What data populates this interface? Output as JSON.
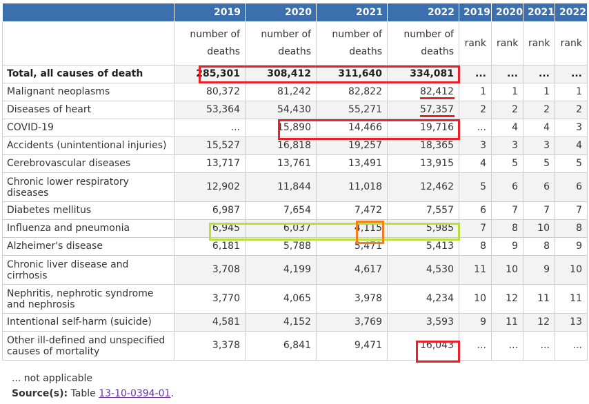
{
  "header": {
    "years": [
      "2019",
      "2020",
      "2021",
      "2022",
      "2019",
      "2020",
      "2021",
      "2022"
    ],
    "units": [
      "number of deaths",
      "number of deaths",
      "number of deaths",
      "number of deaths",
      "rank",
      "rank",
      "rank",
      "rank"
    ]
  },
  "rows": [
    {
      "label": "Total, all causes of death",
      "deaths": [
        "285,301",
        "308,412",
        "311,640",
        "334,081"
      ],
      "ranks": [
        "...",
        "...",
        "...",
        "..."
      ]
    },
    {
      "label": "Malignant neoplasms",
      "deaths": [
        "80,372",
        "81,242",
        "82,822",
        "82,412"
      ],
      "ranks": [
        "1",
        "1",
        "1",
        "1"
      ]
    },
    {
      "label": "Diseases of heart",
      "deaths": [
        "53,364",
        "54,430",
        "55,271",
        "57,357"
      ],
      "ranks": [
        "2",
        "2",
        "2",
        "2"
      ]
    },
    {
      "label": "COVID-19",
      "deaths": [
        "...",
        "15,890",
        "14,466",
        "19,716"
      ],
      "ranks": [
        "...",
        "4",
        "4",
        "3"
      ]
    },
    {
      "label": "Accidents (unintentional injuries)",
      "deaths": [
        "15,527",
        "16,818",
        "19,257",
        "18,365"
      ],
      "ranks": [
        "3",
        "3",
        "3",
        "4"
      ]
    },
    {
      "label": "Cerebrovascular diseases",
      "deaths": [
        "13,717",
        "13,761",
        "13,491",
        "13,915"
      ],
      "ranks": [
        "4",
        "5",
        "5",
        "5"
      ]
    },
    {
      "label": "Chronic lower respiratory diseases",
      "deaths": [
        "12,902",
        "11,844",
        "11,018",
        "12,462"
      ],
      "ranks": [
        "5",
        "6",
        "6",
        "6"
      ]
    },
    {
      "label": "Diabetes mellitus",
      "deaths": [
        "6,987",
        "7,654",
        "7,472",
        "7,557"
      ],
      "ranks": [
        "6",
        "7",
        "7",
        "7"
      ]
    },
    {
      "label": "Influenza and pneumonia",
      "deaths": [
        "6,945",
        "6,037",
        "4,115",
        "5,985"
      ],
      "ranks": [
        "7",
        "8",
        "10",
        "8"
      ]
    },
    {
      "label": "Alzheimer's disease",
      "deaths": [
        "6,181",
        "5,788",
        "5,471",
        "5,413"
      ],
      "ranks": [
        "8",
        "9",
        "8",
        "9"
      ]
    },
    {
      "label": "Chronic liver disease and cirrhosis",
      "deaths": [
        "3,708",
        "4,199",
        "4,617",
        "4,530"
      ],
      "ranks": [
        "11",
        "10",
        "9",
        "10"
      ]
    },
    {
      "label": "Nephritis, nephrotic syndrome and nephrosis",
      "deaths": [
        "3,770",
        "4,065",
        "3,978",
        "4,234"
      ],
      "ranks": [
        "10",
        "12",
        "11",
        "11"
      ]
    },
    {
      "label": "Intentional self-harm (suicide)",
      "deaths": [
        "4,581",
        "4,152",
        "3,769",
        "3,593"
      ],
      "ranks": [
        "9",
        "11",
        "12",
        "13"
      ]
    },
    {
      "label": "Other ill-defined and unspecified causes of mortality",
      "deaths": [
        "3,378",
        "6,841",
        "9,471",
        "16,043"
      ],
      "ranks": [
        "...",
        "...",
        "...",
        "..."
      ]
    }
  ],
  "footnote": {
    "not_applicable": "... not applicable",
    "source_label": "Source(s):",
    "source_text": "Table",
    "source_link": "13-10-0394-01",
    "source_end": "."
  },
  "colors": {
    "header_bg": "#3b6fae",
    "highlight_red": "#e8202a",
    "highlight_green": "#b7e03a",
    "highlight_orange": "#f08020",
    "link": "#6b2fa8"
  }
}
